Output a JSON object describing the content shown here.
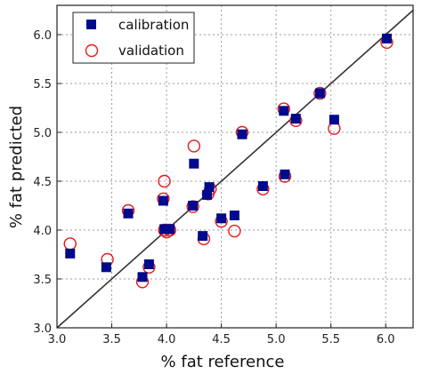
{
  "chart_data": {
    "type": "scatter",
    "xlabel": "% fat reference",
    "ylabel": "% fat predicted",
    "xlim": [
      3.0,
      6.25
    ],
    "ylim": [
      3.0,
      6.3
    ],
    "x_ticks": [
      "3.0",
      "3.5",
      "4.0",
      "4.5",
      "5.0",
      "5.5",
      "6.0"
    ],
    "y_ticks": [
      "3.0",
      "3.5",
      "4.0",
      "4.5",
      "5.0",
      "5.5",
      "6.0"
    ],
    "x_tick_values": [
      3.0,
      3.5,
      4.0,
      4.5,
      5.0,
      5.5,
      6.0
    ],
    "y_tick_values": [
      3.0,
      3.5,
      4.0,
      4.5,
      5.0,
      5.5,
      6.0
    ],
    "grid": true,
    "identity_line": true,
    "legend_position": "top-left",
    "series": [
      {
        "name": "calibration",
        "marker": "square",
        "color": "#000a8c",
        "points": [
          [
            3.12,
            3.76
          ],
          [
            3.45,
            3.62
          ],
          [
            3.65,
            4.17
          ],
          [
            3.78,
            3.52
          ],
          [
            3.84,
            3.65
          ],
          [
            3.97,
            4.3
          ],
          [
            3.98,
            4.01
          ],
          [
            4.0,
            4.01
          ],
          [
            4.03,
            4.01
          ],
          [
            4.24,
            4.25
          ],
          [
            4.25,
            4.68
          ],
          [
            4.33,
            3.94
          ],
          [
            4.37,
            4.36
          ],
          [
            4.39,
            4.44
          ],
          [
            4.5,
            4.12
          ],
          [
            4.62,
            4.15
          ],
          [
            4.69,
            4.98
          ],
          [
            4.88,
            4.45
          ],
          [
            5.07,
            5.22
          ],
          [
            5.08,
            4.57
          ],
          [
            5.18,
            5.14
          ],
          [
            5.4,
            5.4
          ],
          [
            5.53,
            5.13
          ],
          [
            6.01,
            5.96
          ]
        ]
      },
      {
        "name": "validation",
        "marker": "circle",
        "color": "#e31a1c",
        "points": [
          [
            3.12,
            3.86
          ],
          [
            3.46,
            3.7
          ],
          [
            3.65,
            4.2
          ],
          [
            3.78,
            3.47
          ],
          [
            3.84,
            3.62
          ],
          [
            3.97,
            4.32
          ],
          [
            3.98,
            4.5
          ],
          [
            3.98,
            4.0
          ],
          [
            4.0,
            3.98
          ],
          [
            4.03,
            4.0
          ],
          [
            4.24,
            4.24
          ],
          [
            4.25,
            4.86
          ],
          [
            4.34,
            3.91
          ],
          [
            4.38,
            4.37
          ],
          [
            4.4,
            4.42
          ],
          [
            4.5,
            4.09
          ],
          [
            4.62,
            3.99
          ],
          [
            4.69,
            5.0
          ],
          [
            4.88,
            4.42
          ],
          [
            5.07,
            5.24
          ],
          [
            5.08,
            4.55
          ],
          [
            5.18,
            5.12
          ],
          [
            5.4,
            5.4
          ],
          [
            5.53,
            5.04
          ],
          [
            6.01,
            5.92
          ]
        ]
      }
    ]
  }
}
